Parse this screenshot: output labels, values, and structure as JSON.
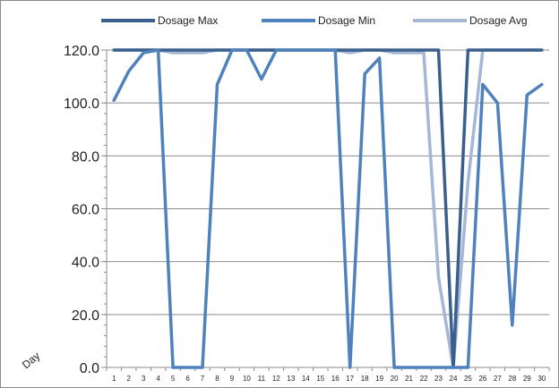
{
  "chart_data": {
    "type": "line",
    "xlabel": "Day",
    "ylabel": "",
    "ylim": [
      0,
      120
    ],
    "ytick_step": 20,
    "ytick_decimals": 1,
    "grid": "horizontal",
    "legend_position": "top",
    "x": [
      1,
      2,
      3,
      4,
      5,
      6,
      7,
      8,
      9,
      10,
      11,
      12,
      13,
      14,
      15,
      16,
      17,
      18,
      19,
      20,
      21,
      22,
      23,
      24,
      25,
      26,
      27,
      28,
      29,
      30
    ],
    "series": [
      {
        "name": "Dosage Max",
        "color": "#3a5f8c",
        "values": [
          120,
          120,
          120,
          120,
          120,
          120,
          120,
          120,
          120,
          120,
          120,
          120,
          120,
          120,
          120,
          120,
          120,
          120,
          120,
          120,
          120,
          120,
          120,
          0,
          120,
          120,
          120,
          120,
          120,
          120
        ]
      },
      {
        "name": "Dosage Min",
        "color": "#4f81bd",
        "values": [
          101,
          112,
          119,
          120,
          0,
          0,
          0,
          107,
          120,
          120,
          109,
          120,
          120,
          120,
          120,
          120,
          0,
          111,
          117,
          0,
          0,
          0,
          0,
          0,
          0,
          107,
          100,
          16,
          103,
          107
        ]
      },
      {
        "name": "Dosage Avg",
        "color": "#a4b7d6",
        "values": [
          120,
          120,
          120,
          120,
          119,
          119,
          119,
          120,
          120,
          120,
          120,
          120,
          120,
          120,
          120,
          120,
          119,
          120,
          120,
          119,
          119,
          119,
          34,
          0,
          70,
          120,
          120,
          120,
          120,
          120
        ]
      }
    ]
  }
}
